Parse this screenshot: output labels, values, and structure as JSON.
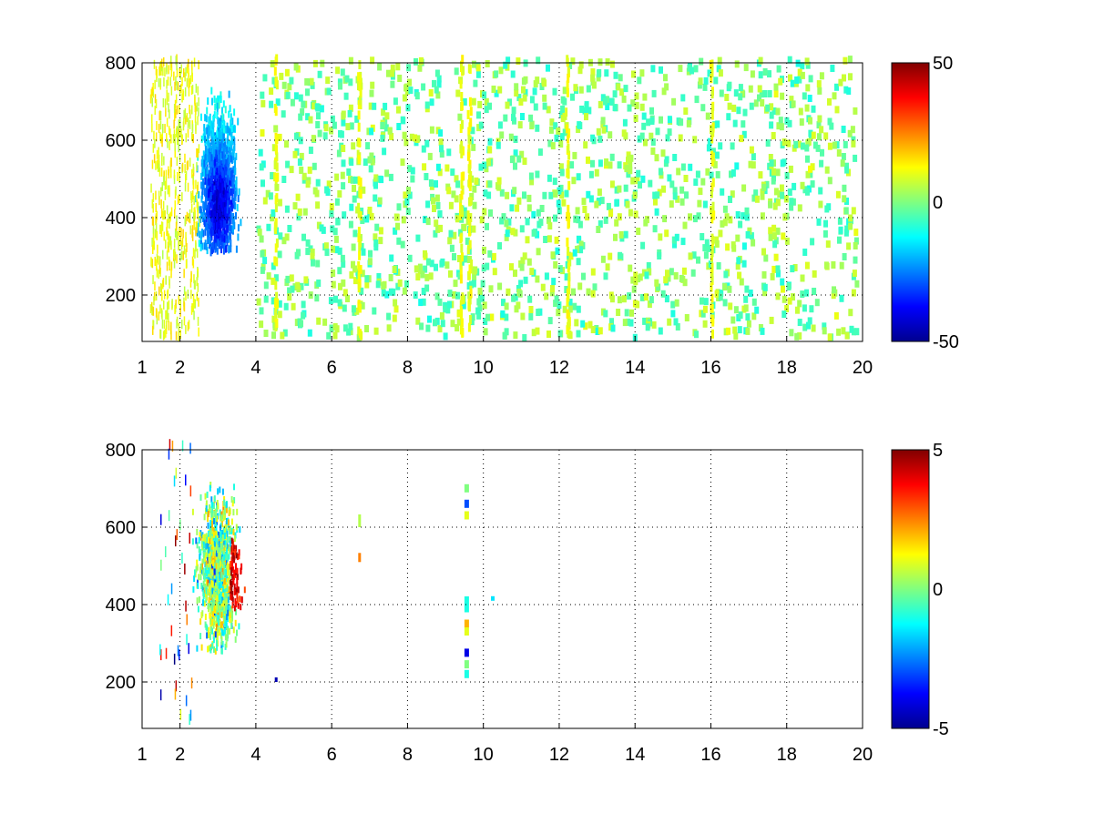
{
  "chart_data": [
    {
      "type": "heatmap",
      "xlim": [
        1,
        20
      ],
      "ylim": [
        80,
        800
      ],
      "xticks": [
        "1",
        "2",
        "4",
        "6",
        "8",
        "10",
        "12",
        "14",
        "16",
        "18",
        "20"
      ],
      "yticks": [
        "200",
        "400",
        "600",
        "800"
      ],
      "colorbar": {
        "min": -50,
        "max": 50,
        "ticks": [
          "50",
          "0",
          "-50"
        ],
        "colormap": "jet"
      },
      "grid": true,
      "features": {
        "main_blob": {
          "x_range": [
            2.2,
            4.0
          ],
          "y_range": [
            300,
            790
          ],
          "center_x": 3.0,
          "center_y": 400,
          "value": -35
        },
        "scatter_density": "sparse near-zero values across x 1-20"
      }
    },
    {
      "type": "heatmap",
      "xlim": [
        1,
        20
      ],
      "ylim": [
        80,
        800
      ],
      "xticks": [
        "1",
        "2",
        "4",
        "6",
        "8",
        "10",
        "12",
        "14",
        "16",
        "18",
        "20"
      ],
      "yticks": [
        "200",
        "400",
        "600",
        "800"
      ],
      "colorbar": {
        "min": -5,
        "max": 5,
        "ticks": [
          "5",
          "0",
          "-5"
        ],
        "colormap": "jet"
      },
      "grid": true,
      "features": {
        "main_blob": {
          "x_range": [
            2.0,
            4.2
          ],
          "y_range": [
            270,
            790
          ],
          "hot_region_x": [
            3.3,
            3.9
          ],
          "hot_region_y": [
            380,
            560
          ],
          "hot_value": 4.5
        },
        "isolated_column_x": 9.55
      }
    }
  ],
  "colors": {
    "frame": "#000000",
    "grid": "#000000",
    "background": "#ffffff"
  }
}
